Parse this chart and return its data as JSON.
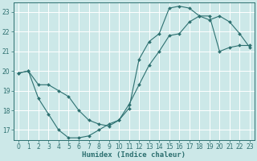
{
  "xlabel": "Humidex (Indice chaleur)",
  "bg_color": "#cce8e8",
  "grid_color": "#ffffff",
  "line_color": "#2d7070",
  "curve1_x": [
    0,
    1,
    2,
    3,
    4,
    5,
    6,
    7,
    8,
    9,
    10,
    11,
    12,
    13,
    14,
    15,
    16,
    17,
    18,
    19,
    20,
    21,
    22,
    23
  ],
  "curve1_y": [
    19.9,
    20.0,
    18.6,
    17.8,
    17.0,
    16.6,
    16.6,
    16.7,
    17.0,
    17.3,
    17.5,
    18.1,
    20.6,
    21.5,
    21.9,
    23.2,
    23.3,
    23.2,
    22.8,
    22.6,
    22.8,
    22.5,
    21.9,
    21.2
  ],
  "curve2_x": [
    0,
    1,
    2,
    3,
    4,
    5,
    6,
    7,
    8,
    9,
    10,
    11,
    12,
    13,
    14,
    15,
    16,
    17,
    18,
    19,
    20,
    21,
    22,
    23
  ],
  "curve2_y": [
    19.9,
    20.0,
    19.3,
    19.3,
    19.0,
    18.7,
    18.0,
    17.5,
    17.3,
    17.2,
    17.5,
    18.3,
    19.3,
    20.3,
    21.0,
    21.8,
    21.9,
    22.5,
    22.8,
    22.8,
    21.0,
    21.2,
    21.3,
    21.3
  ],
  "ylim": [
    16.5,
    23.5
  ],
  "xlim": [
    -0.5,
    23.5
  ],
  "yticks": [
    17,
    18,
    19,
    20,
    21,
    22,
    23
  ],
  "xticks": [
    0,
    1,
    2,
    3,
    4,
    5,
    6,
    7,
    8,
    9,
    10,
    11,
    12,
    13,
    14,
    15,
    16,
    17,
    18,
    19,
    20,
    21,
    22,
    23
  ],
  "xlabel_fontsize": 6.5,
  "tick_fontsize": 5.5
}
